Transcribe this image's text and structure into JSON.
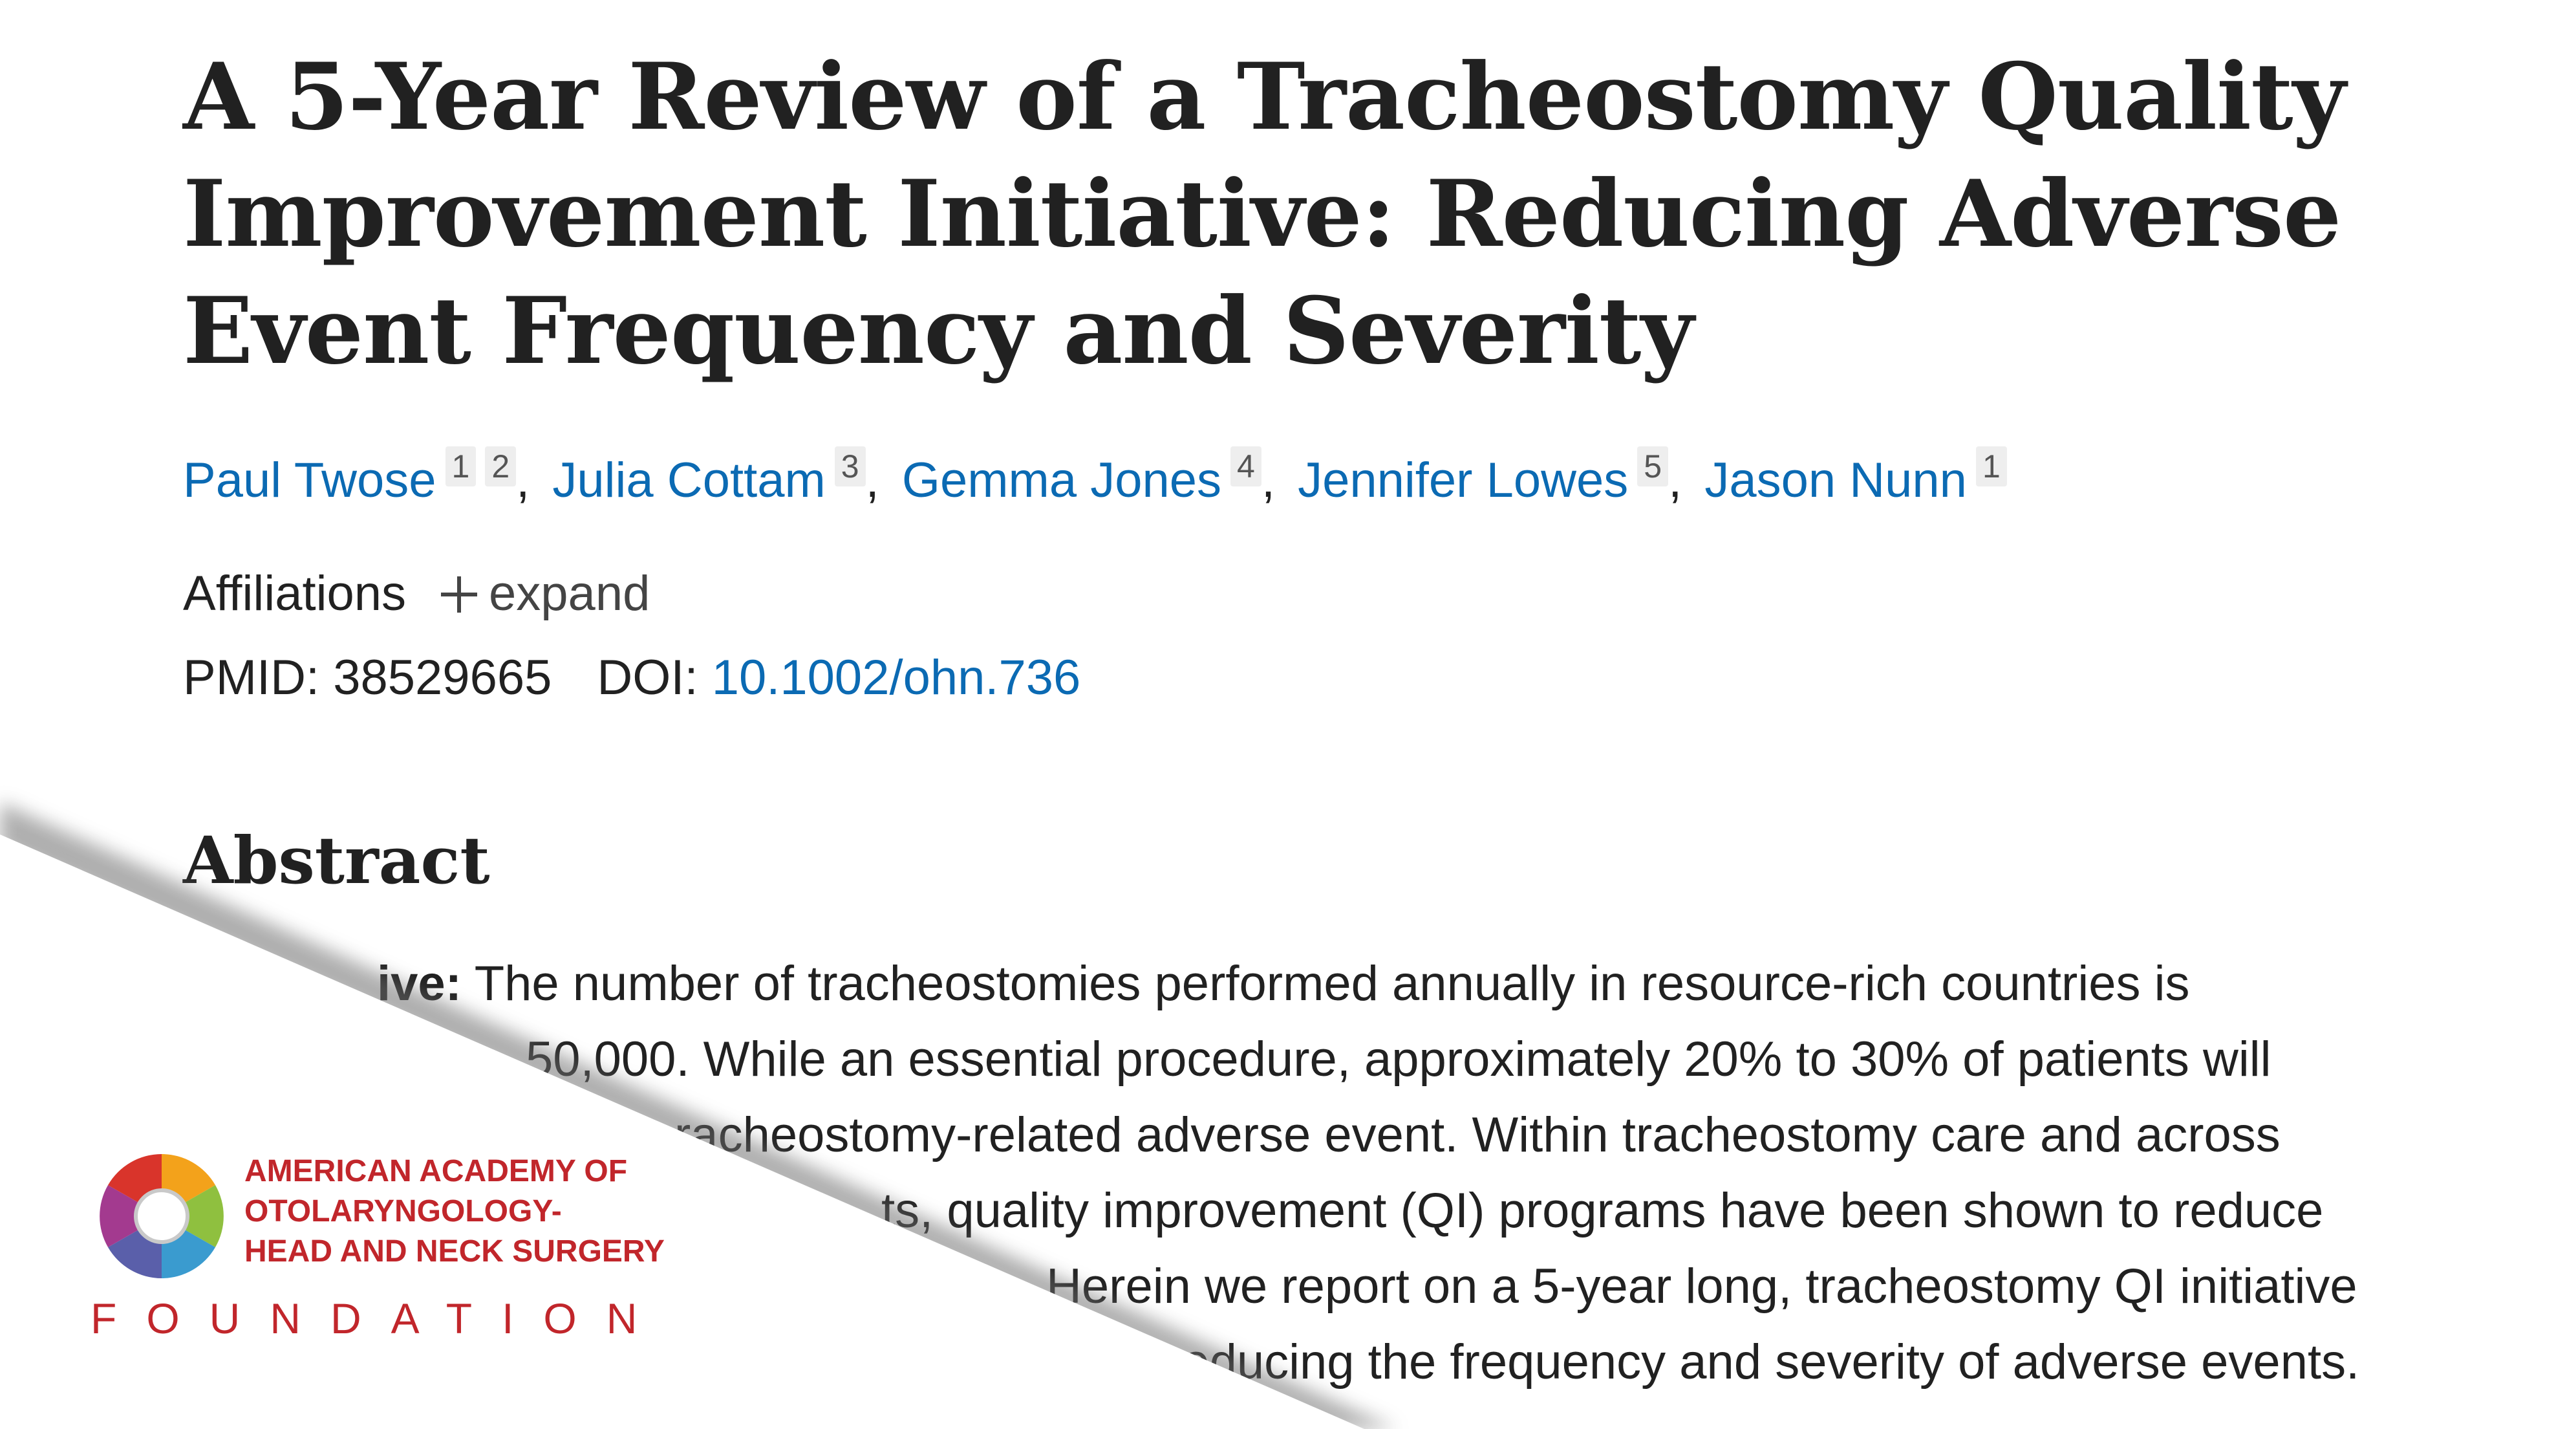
{
  "article": {
    "title": "A 5-Year Review of a Tracheostomy Quality Improvement Initiative: Reducing Adverse Event Frequency and Severity",
    "authors": [
      {
        "name": "Paul Twose",
        "affiliations": [
          "1",
          "2"
        ]
      },
      {
        "name": "Julia Cottam",
        "affiliations": [
          "3"
        ]
      },
      {
        "name": "Gemma Jones",
        "affiliations": [
          "4"
        ]
      },
      {
        "name": "Jennifer Lowes",
        "affiliations": [
          "5"
        ]
      },
      {
        "name": "Jason Nunn",
        "affiliations": [
          "1"
        ]
      }
    ],
    "affiliations_label": "Affiliations",
    "expand_label": "expand",
    "pmid": "PMID: 38529665",
    "doi_label": "DOI:",
    "doi": "10.1002/ohn.736"
  },
  "abstract": {
    "heading": "Abstract",
    "lines": [
      {
        "bold": "ive:",
        "text": " The number of tracheostomies performed annually in resource-rich countries is"
      },
      {
        "bold": "",
        "text": "50,000. While an essential procedure, approximately 20% to 30% of patients will"
      },
      {
        "bold": "",
        "text": "racheostomy-related adverse event. Within tracheostomy care and across"
      },
      {
        "bold": "",
        "text": "ts, quality improvement (QI) programs have been shown to reduce"
      },
      {
        "bold": "",
        "text": "Herein we report on a 5-year long, tracheostomy QI initiative"
      },
      {
        "bold": "",
        "text": "reducing the frequency and severity of adverse events."
      }
    ]
  },
  "logo": {
    "name_lines": [
      "AMERICAN ACADEMY OF",
      "OTOLARYNGOLOGY-",
      "HEAD AND NECK SURGERY"
    ],
    "foundation": "FOUNDATION"
  }
}
